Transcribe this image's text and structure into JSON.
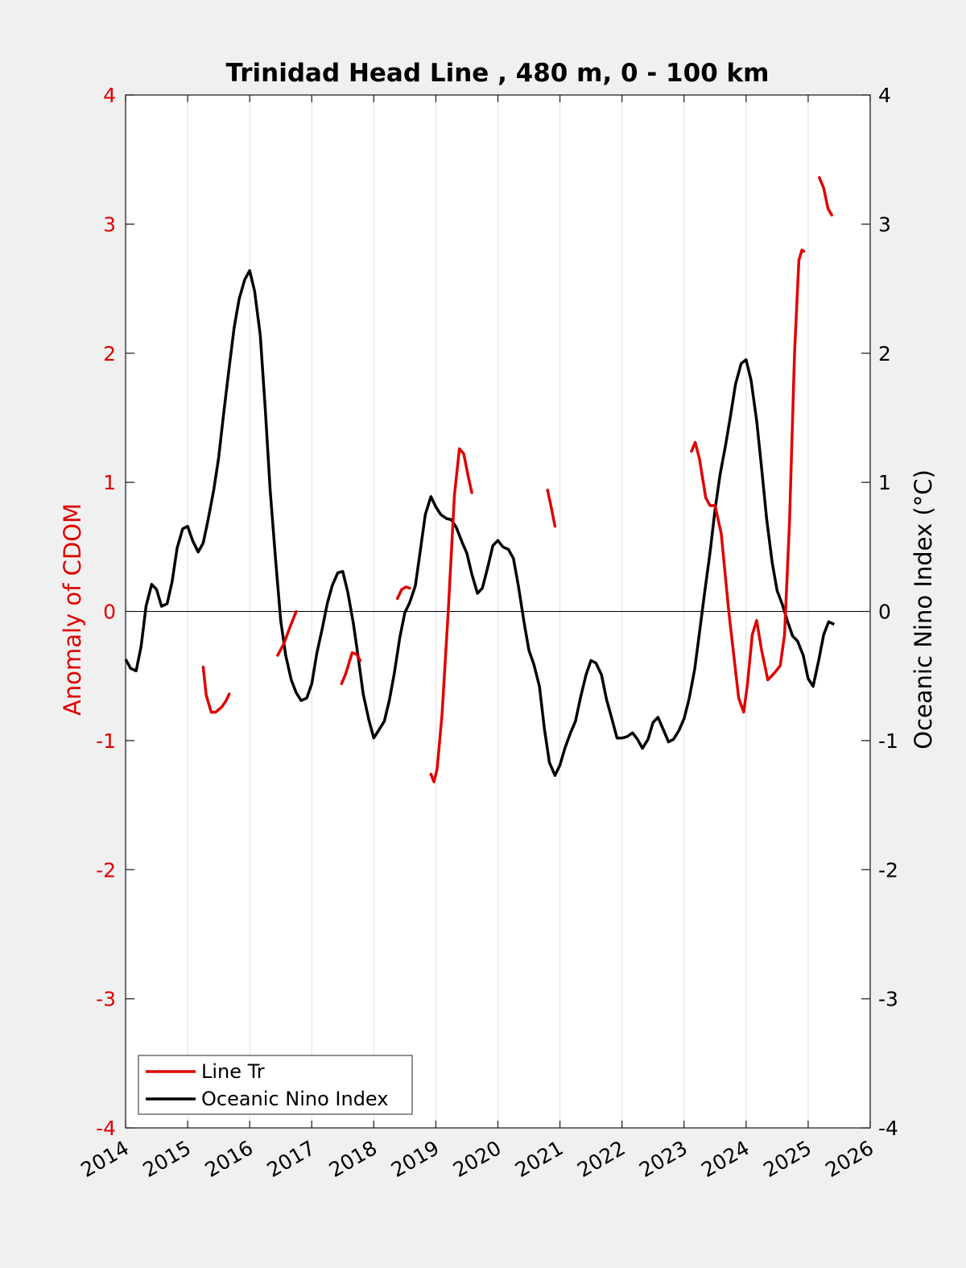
{
  "chart_data": {
    "type": "line",
    "title": "Trinidad Head Line , 480 m, 0 - 100 km",
    "ylabel_left": "Anomaly of CDOM",
    "ylabel_right": "Oceanic Nino Index (°C)",
    "xlim": [
      2014,
      2026
    ],
    "ylim_left": [
      -4,
      4
    ],
    "ylim_right": [
      -4,
      4
    ],
    "x_ticks": [
      "2014",
      "2015",
      "2016",
      "2017",
      "2018",
      "2019",
      "2020",
      "2021",
      "2022",
      "2023",
      "2024",
      "2025",
      "2026"
    ],
    "y_ticks_left": [
      "-4",
      "-3",
      "-2",
      "-1",
      "0",
      "1",
      "2",
      "3",
      "4"
    ],
    "y_ticks_right": [
      "-4",
      "-3",
      "-2",
      "-1",
      "0",
      "1",
      "2",
      "3",
      "4"
    ],
    "grid": "vertical",
    "legend_position": "bottom-left",
    "colors": {
      "cdom": "#e00000",
      "oni": "#000000",
      "zero_line": "#000000",
      "grid": "#e0e0e0"
    },
    "series": [
      {
        "name": "Line Tr",
        "axis": "left",
        "segments": [
          [
            [
              2015.25,
              -0.43
            ],
            [
              2015.3,
              -0.65
            ],
            [
              2015.38,
              -0.78
            ],
            [
              2015.45,
              -0.78
            ],
            [
              2015.55,
              -0.74
            ],
            [
              2015.62,
              -0.69
            ],
            [
              2015.67,
              -0.64
            ]
          ],
          [
            [
              2016.45,
              -0.34
            ],
            [
              2016.55,
              -0.25
            ],
            [
              2016.65,
              -0.12
            ],
            [
              2016.75,
              0.0
            ]
          ],
          [
            [
              2017.48,
              -0.56
            ],
            [
              2017.55,
              -0.48
            ],
            [
              2017.65,
              -0.32
            ],
            [
              2017.72,
              -0.33
            ],
            [
              2017.78,
              -0.38
            ]
          ],
          [
            [
              2018.38,
              0.1
            ],
            [
              2018.45,
              0.17
            ],
            [
              2018.52,
              0.19
            ],
            [
              2018.58,
              0.18
            ]
          ],
          [
            [
              2018.92,
              -1.26
            ],
            [
              2018.97,
              -1.32
            ],
            [
              2019.02,
              -1.22
            ],
            [
              2019.1,
              -0.8
            ],
            [
              2019.2,
              0.0
            ],
            [
              2019.3,
              0.9
            ],
            [
              2019.38,
              1.26
            ],
            [
              2019.45,
              1.22
            ],
            [
              2019.52,
              1.05
            ],
            [
              2019.58,
              0.92
            ]
          ],
          [
            [
              2020.8,
              0.94
            ],
            [
              2020.85,
              0.83
            ],
            [
              2020.92,
              0.66
            ]
          ],
          [
            [
              2023.12,
              1.24
            ],
            [
              2023.18,
              1.31
            ],
            [
              2023.25,
              1.18
            ],
            [
              2023.35,
              0.88
            ],
            [
              2023.42,
              0.82
            ],
            [
              2023.5,
              0.82
            ],
            [
              2023.6,
              0.6
            ],
            [
              2023.72,
              0.0
            ],
            [
              2023.88,
              -0.67
            ],
            [
              2023.96,
              -0.78
            ],
            [
              2024.02,
              -0.57
            ],
            [
              2024.1,
              -0.18
            ],
            [
              2024.17,
              -0.07
            ],
            [
              2024.25,
              -0.3
            ],
            [
              2024.35,
              -0.53
            ],
            [
              2024.45,
              -0.48
            ],
            [
              2024.55,
              -0.42
            ],
            [
              2024.62,
              -0.18
            ],
            [
              2024.7,
              0.7
            ],
            [
              2024.78,
              2.0
            ],
            [
              2024.85,
              2.72
            ],
            [
              2024.9,
              2.8
            ],
            [
              2024.93,
              2.79
            ]
          ],
          [
            [
              2025.18,
              3.36
            ],
            [
              2025.25,
              3.28
            ],
            [
              2025.32,
              3.12
            ],
            [
              2025.38,
              3.07
            ]
          ]
        ]
      },
      {
        "name": "Oceanic Nino Index",
        "axis": "right",
        "values": [
          [
            2014.0,
            -0.37
          ],
          [
            2014.08,
            -0.44
          ],
          [
            2014.17,
            -0.46
          ],
          [
            2014.25,
            -0.27
          ],
          [
            2014.33,
            0.04
          ],
          [
            2014.42,
            0.21
          ],
          [
            2014.5,
            0.17
          ],
          [
            2014.58,
            0.04
          ],
          [
            2014.67,
            0.06
          ],
          [
            2014.75,
            0.23
          ],
          [
            2014.83,
            0.49
          ],
          [
            2014.92,
            0.64
          ],
          [
            2015.0,
            0.66
          ],
          [
            2015.08,
            0.55
          ],
          [
            2015.17,
            0.46
          ],
          [
            2015.25,
            0.53
          ],
          [
            2015.33,
            0.71
          ],
          [
            2015.42,
            0.94
          ],
          [
            2015.5,
            1.19
          ],
          [
            2015.58,
            1.53
          ],
          [
            2015.67,
            1.89
          ],
          [
            2015.75,
            2.2
          ],
          [
            2015.83,
            2.42
          ],
          [
            2015.92,
            2.57
          ],
          [
            2016.0,
            2.64
          ],
          [
            2016.08,
            2.48
          ],
          [
            2016.17,
            2.14
          ],
          [
            2016.25,
            1.58
          ],
          [
            2016.33,
            0.94
          ],
          [
            2016.42,
            0.39
          ],
          [
            2016.5,
            -0.07
          ],
          [
            2016.58,
            -0.34
          ],
          [
            2016.67,
            -0.53
          ],
          [
            2016.75,
            -0.63
          ],
          [
            2016.83,
            -0.69
          ],
          [
            2016.92,
            -0.67
          ],
          [
            2017.0,
            -0.56
          ],
          [
            2017.08,
            -0.33
          ],
          [
            2017.17,
            -0.13
          ],
          [
            2017.25,
            0.06
          ],
          [
            2017.33,
            0.2
          ],
          [
            2017.42,
            0.3
          ],
          [
            2017.5,
            0.31
          ],
          [
            2017.58,
            0.15
          ],
          [
            2017.67,
            -0.09
          ],
          [
            2017.75,
            -0.36
          ],
          [
            2017.83,
            -0.64
          ],
          [
            2017.92,
            -0.84
          ],
          [
            2018.0,
            -0.98
          ],
          [
            2018.08,
            -0.92
          ],
          [
            2018.17,
            -0.85
          ],
          [
            2018.25,
            -0.69
          ],
          [
            2018.33,
            -0.48
          ],
          [
            2018.42,
            -0.2
          ],
          [
            2018.5,
            -0.01
          ],
          [
            2018.58,
            0.07
          ],
          [
            2018.67,
            0.2
          ],
          [
            2018.75,
            0.47
          ],
          [
            2018.83,
            0.75
          ],
          [
            2018.92,
            0.89
          ],
          [
            2019.0,
            0.81
          ],
          [
            2019.08,
            0.75
          ],
          [
            2019.17,
            0.72
          ],
          [
            2019.25,
            0.71
          ],
          [
            2019.33,
            0.65
          ],
          [
            2019.42,
            0.54
          ],
          [
            2019.5,
            0.45
          ],
          [
            2019.58,
            0.29
          ],
          [
            2019.67,
            0.14
          ],
          [
            2019.75,
            0.18
          ],
          [
            2019.83,
            0.33
          ],
          [
            2019.92,
            0.51
          ],
          [
            2020.0,
            0.55
          ],
          [
            2020.08,
            0.5
          ],
          [
            2020.17,
            0.48
          ],
          [
            2020.25,
            0.41
          ],
          [
            2020.33,
            0.2
          ],
          [
            2020.42,
            -0.08
          ],
          [
            2020.5,
            -0.3
          ],
          [
            2020.58,
            -0.41
          ],
          [
            2020.67,
            -0.58
          ],
          [
            2020.75,
            -0.91
          ],
          [
            2020.83,
            -1.17
          ],
          [
            2020.92,
            -1.27
          ],
          [
            2021.0,
            -1.19
          ],
          [
            2021.08,
            -1.06
          ],
          [
            2021.17,
            -0.94
          ],
          [
            2021.25,
            -0.85
          ],
          [
            2021.33,
            -0.67
          ],
          [
            2021.42,
            -0.49
          ],
          [
            2021.5,
            -0.38
          ],
          [
            2021.58,
            -0.4
          ],
          [
            2021.67,
            -0.49
          ],
          [
            2021.75,
            -0.68
          ],
          [
            2021.83,
            -0.82
          ],
          [
            2021.92,
            -0.98
          ],
          [
            2022.0,
            -0.98
          ],
          [
            2022.08,
            -0.97
          ],
          [
            2022.17,
            -0.94
          ],
          [
            2022.25,
            -0.99
          ],
          [
            2022.33,
            -1.06
          ],
          [
            2022.42,
            -0.99
          ],
          [
            2022.5,
            -0.86
          ],
          [
            2022.58,
            -0.82
          ],
          [
            2022.67,
            -0.92
          ],
          [
            2022.75,
            -1.01
          ],
          [
            2022.83,
            -0.99
          ],
          [
            2022.92,
            -0.92
          ],
          [
            2023.0,
            -0.83
          ],
          [
            2023.08,
            -0.68
          ],
          [
            2023.17,
            -0.45
          ],
          [
            2023.25,
            -0.16
          ],
          [
            2023.33,
            0.14
          ],
          [
            2023.42,
            0.46
          ],
          [
            2023.5,
            0.79
          ],
          [
            2023.58,
            1.06
          ],
          [
            2023.67,
            1.29
          ],
          [
            2023.75,
            1.52
          ],
          [
            2023.83,
            1.76
          ],
          [
            2023.92,
            1.92
          ],
          [
            2024.0,
            1.95
          ],
          [
            2024.08,
            1.79
          ],
          [
            2024.17,
            1.48
          ],
          [
            2024.25,
            1.11
          ],
          [
            2024.33,
            0.72
          ],
          [
            2024.42,
            0.38
          ],
          [
            2024.5,
            0.16
          ],
          [
            2024.58,
            0.06
          ],
          [
            2024.67,
            -0.08
          ],
          [
            2024.75,
            -0.19
          ],
          [
            2024.83,
            -0.23
          ],
          [
            2024.92,
            -0.34
          ],
          [
            2025.0,
            -0.52
          ],
          [
            2025.08,
            -0.58
          ],
          [
            2025.17,
            -0.38
          ],
          [
            2025.25,
            -0.18
          ],
          [
            2025.33,
            -0.08
          ],
          [
            2025.42,
            -0.1
          ]
        ]
      }
    ]
  }
}
